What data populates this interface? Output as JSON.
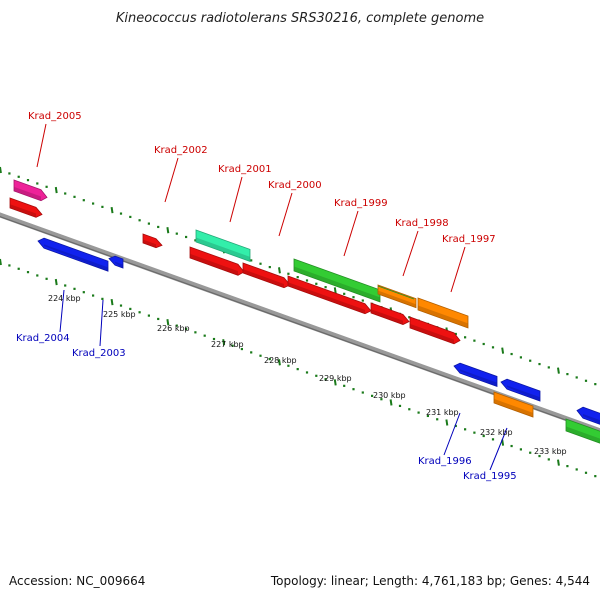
{
  "title": "Kineococcus radiotolerans SRS30216, complete genome",
  "footer": {
    "accession": "Accession: NC_009664",
    "summary": "Topology: linear; Length: 4,761,183 bp; Genes: 4,544"
  },
  "colors": {
    "backbone": "#888888",
    "tick_dots": "#1a7a1a",
    "label_forward": "#cc0000",
    "label_reverse": "#0000bb",
    "red": "#ee1111",
    "blue": "#1122ee",
    "green": "#33cc33",
    "orange": "#ff8800",
    "teal": "#33eeaa",
    "pink": "#ee2299"
  },
  "scale_labels": [
    "224 kbp",
    "225 kbp",
    "226 kbp",
    "227 kbp",
    "228 kbp",
    "229 kbp",
    "230 kbp",
    "231 kbp",
    "232 kbp",
    "233 kbp"
  ],
  "gene_labels": [
    {
      "text": "Krad_2005",
      "strand": "forward"
    },
    {
      "text": "Krad_2002",
      "strand": "forward"
    },
    {
      "text": "Krad_2001",
      "strand": "forward"
    },
    {
      "text": "Krad_2000",
      "strand": "forward"
    },
    {
      "text": "Krad_1999",
      "strand": "forward"
    },
    {
      "text": "Krad_1998",
      "strand": "forward"
    },
    {
      "text": "Krad_1997",
      "strand": "forward"
    },
    {
      "text": "Krad_2004",
      "strand": "reverse"
    },
    {
      "text": "Krad_2003",
      "strand": "reverse"
    },
    {
      "text": "Krad_1996",
      "strand": "reverse"
    },
    {
      "text": "Krad_1995",
      "strand": "reverse"
    }
  ]
}
